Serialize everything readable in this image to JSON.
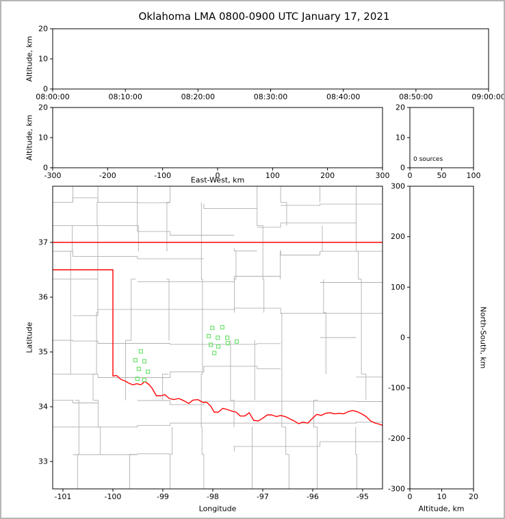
{
  "page": {
    "title": "Oklahoma LMA 0800-0900 UTC January 17, 2021"
  },
  "colors": {
    "axis": "#000000",
    "county": "#b0b0b0",
    "state_border": "#ff0000",
    "station": "#6de26d",
    "figure_border": "#b6b6b6",
    "background": "#ffffff"
  },
  "chart_data": [
    {
      "id": "time_height",
      "type": "scatter",
      "xlabel": "",
      "ylabel": "Altitude, km",
      "xlim": [
        0,
        3600
      ],
      "xticks": [
        0,
        600,
        1200,
        1800,
        2400,
        3000,
        3600
      ],
      "xticklabels": [
        "08:00:00",
        "08:10:00",
        "08:20:00",
        "08:30:00",
        "08:40:00",
        "08:50:00",
        "09:00:00"
      ],
      "ylim": [
        0,
        20
      ],
      "yticks": [
        0,
        10,
        20
      ],
      "points": []
    },
    {
      "id": "eastwest_height",
      "type": "scatter",
      "xlabel": "East-West, km",
      "ylabel": "Altitude, km",
      "xlim": [
        -300,
        300
      ],
      "xticks": [
        -300,
        -200,
        -100,
        0,
        100,
        200,
        300
      ],
      "ylim": [
        0,
        20
      ],
      "yticks": [
        0,
        10,
        20
      ],
      "points": []
    },
    {
      "id": "histogram",
      "type": "scatter",
      "annotation": "0 sources",
      "xlim": [
        0,
        100
      ],
      "xticks": [
        0,
        50,
        100
      ],
      "ylim": [
        0,
        20
      ],
      "yticks": [
        0,
        10,
        20
      ],
      "points": []
    },
    {
      "id": "plan_view",
      "type": "scatter",
      "xlabel": "Longitude",
      "ylabel": "Latitude",
      "xlim": [
        -101.205,
        -94.602
      ],
      "xticks": [
        -101,
        -100,
        -99,
        -98,
        -97,
        -96,
        -95
      ],
      "ylim": [
        32.5,
        38.025
      ],
      "yticks": [
        33,
        34,
        35,
        36,
        37
      ],
      "points": [],
      "stations": [
        [
          -99.44,
          35.01
        ],
        [
          -99.55,
          34.85
        ],
        [
          -99.37,
          34.83
        ],
        [
          -99.48,
          34.69
        ],
        [
          -99.3,
          34.64
        ],
        [
          -99.51,
          34.51
        ],
        [
          -99.37,
          34.49
        ],
        [
          -98.01,
          35.44
        ],
        [
          -97.81,
          35.45
        ],
        [
          -98.08,
          35.29
        ],
        [
          -97.9,
          35.26
        ],
        [
          -97.71,
          35.26
        ],
        [
          -98.04,
          35.13
        ],
        [
          -97.89,
          35.1
        ],
        [
          -97.7,
          35.16
        ],
        [
          -97.52,
          35.19
        ],
        [
          -97.97,
          34.98
        ]
      ],
      "state_border": [
        [
          [
            -101.205,
            37.0
          ],
          [
            -94.602,
            37.0
          ]
        ],
        [
          [
            -101.205,
            36.5
          ],
          [
            -100.0,
            36.5
          ],
          [
            -100.0,
            34.56
          ],
          [
            -99.93,
            34.57
          ],
          [
            -99.84,
            34.5
          ],
          [
            -99.76,
            34.47
          ],
          [
            -99.68,
            34.43
          ],
          [
            -99.6,
            34.4
          ],
          [
            -99.52,
            34.42
          ],
          [
            -99.44,
            34.4
          ],
          [
            -99.36,
            34.46
          ],
          [
            -99.27,
            34.4
          ],
          [
            -99.21,
            34.33
          ],
          [
            -99.13,
            34.2
          ],
          [
            -99.04,
            34.2
          ],
          [
            -98.96,
            34.22
          ],
          [
            -98.87,
            34.15
          ],
          [
            -98.78,
            34.13
          ],
          [
            -98.68,
            34.15
          ],
          [
            -98.58,
            34.11
          ],
          [
            -98.48,
            34.06
          ],
          [
            -98.4,
            34.12
          ],
          [
            -98.3,
            34.13
          ],
          [
            -98.2,
            34.08
          ],
          [
            -98.12,
            34.08
          ],
          [
            -98.04,
            34.01
          ],
          [
            -97.97,
            33.9
          ],
          [
            -97.89,
            33.9
          ],
          [
            -97.8,
            33.97
          ],
          [
            -97.71,
            33.95
          ],
          [
            -97.62,
            33.92
          ],
          [
            -97.53,
            33.9
          ],
          [
            -97.45,
            33.83
          ],
          [
            -97.36,
            33.83
          ],
          [
            -97.27,
            33.89
          ],
          [
            -97.18,
            33.75
          ],
          [
            -97.09,
            33.74
          ],
          [
            -97.0,
            33.79
          ],
          [
            -96.91,
            33.85
          ],
          [
            -96.82,
            33.85
          ],
          [
            -96.73,
            33.82
          ],
          [
            -96.64,
            33.84
          ],
          [
            -96.55,
            33.82
          ],
          [
            -96.46,
            33.78
          ],
          [
            -96.37,
            33.74
          ],
          [
            -96.28,
            33.69
          ],
          [
            -96.19,
            33.72
          ],
          [
            -96.1,
            33.7
          ],
          [
            -96.0,
            33.79
          ],
          [
            -95.92,
            33.86
          ],
          [
            -95.83,
            33.84
          ],
          [
            -95.74,
            33.88
          ],
          [
            -95.65,
            33.89
          ],
          [
            -95.56,
            33.87
          ],
          [
            -95.47,
            33.88
          ],
          [
            -95.38,
            33.87
          ],
          [
            -95.29,
            33.91
          ],
          [
            -95.2,
            33.93
          ],
          [
            -95.11,
            33.91
          ],
          [
            -95.02,
            33.87
          ],
          [
            -94.93,
            33.82
          ],
          [
            -94.84,
            33.74
          ],
          [
            -94.75,
            33.7
          ],
          [
            -94.66,
            33.68
          ],
          [
            -94.6,
            33.66
          ]
        ]
      ]
    },
    {
      "id": "northsouth_height",
      "type": "scatter",
      "xlabel": "Altitude, km",
      "ylabel": "North-South, km",
      "xlim": [
        0,
        20
      ],
      "xticks": [
        0,
        10,
        20
      ],
      "ylim": [
        -300,
        300
      ],
      "yticks": [
        -300,
        -200,
        -100,
        0,
        100,
        200,
        300
      ],
      "points": []
    }
  ]
}
